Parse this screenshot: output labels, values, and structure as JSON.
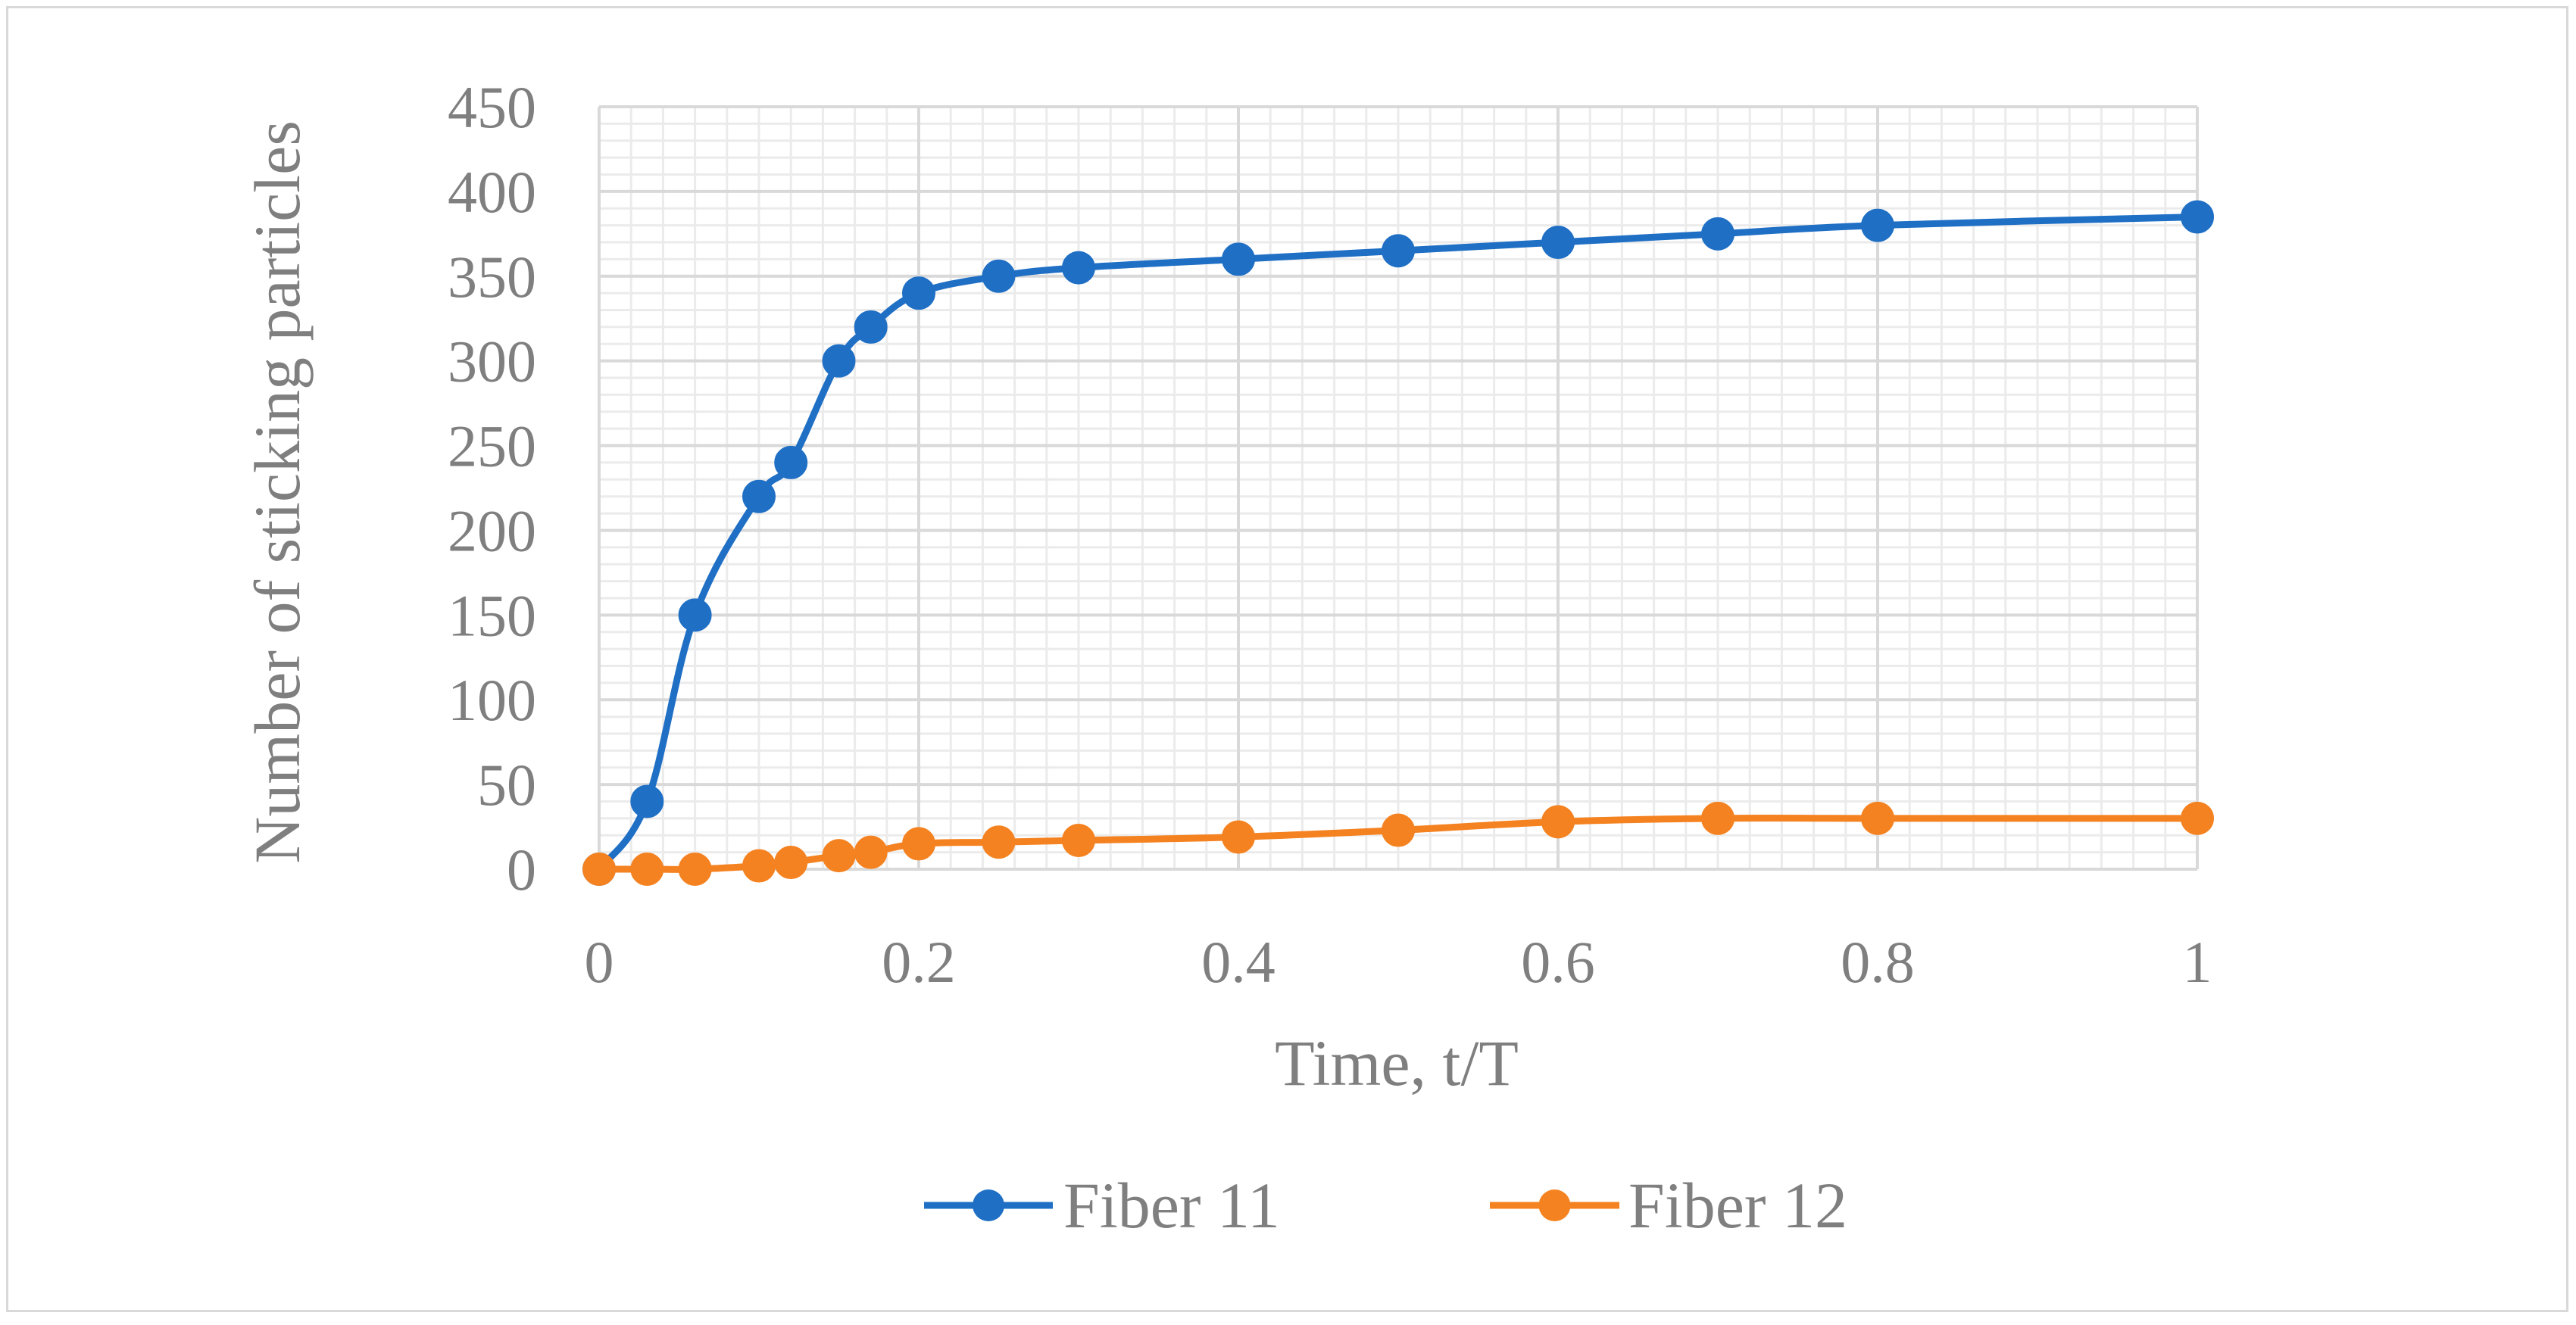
{
  "chart_data": {
    "type": "line",
    "title": "",
    "xlabel": "Time, t/T",
    "ylabel": "Number of sticking particles",
    "xlim": [
      0,
      1
    ],
    "ylim": [
      0,
      450
    ],
    "x_ticks": [
      "0",
      "0.2",
      "0.4",
      "0.6",
      "0.8",
      "1"
    ],
    "y_ticks": [
      "0",
      "50",
      "100",
      "150",
      "200",
      "250",
      "300",
      "350",
      "400",
      "450"
    ],
    "x_tick_values": [
      0,
      0.2,
      0.4,
      0.6,
      0.8,
      1
    ],
    "y_tick_values": [
      0,
      50,
      100,
      150,
      200,
      250,
      300,
      350,
      400,
      450
    ],
    "grid": true,
    "legend_position": "bottom",
    "x": [
      0,
      0.03,
      0.06,
      0.1,
      0.12,
      0.15,
      0.17,
      0.2,
      0.25,
      0.3,
      0.4,
      0.5,
      0.6,
      0.7,
      0.8,
      1
    ],
    "series": [
      {
        "name": "Fiber 11",
        "color": "#1f6fc5",
        "values": [
          0,
          40,
          150,
          220,
          240,
          300,
          320,
          340,
          350,
          355,
          360,
          365,
          370,
          375,
          380,
          385
        ]
      },
      {
        "name": "Fiber 12",
        "color": "#f58220",
        "values": [
          0,
          0,
          0,
          2,
          4,
          8,
          10,
          15,
          16,
          17,
          19,
          23,
          28,
          30,
          30,
          30
        ]
      }
    ]
  }
}
